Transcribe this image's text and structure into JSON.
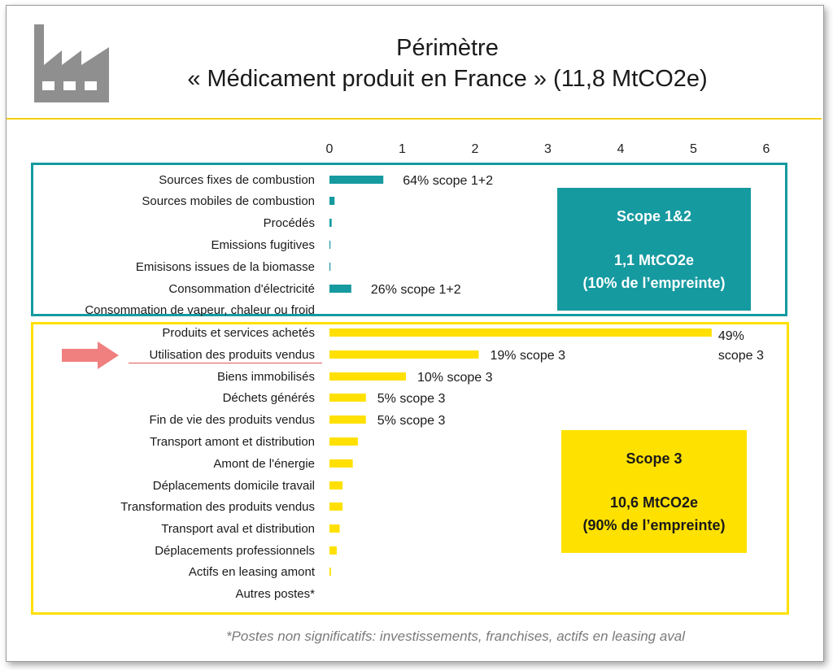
{
  "title": {
    "line1": "Périmètre",
    "line2": "« Médicament produit en France » (11,8 MtCO2e)"
  },
  "icons": {
    "factory": "factory-icon",
    "arrow": "arrow-right-icon"
  },
  "colors": {
    "teal": "#159aa0",
    "yellow": "#ffe000",
    "arrow": "#f08080",
    "rule": "#f2d000"
  },
  "panels": {
    "scope12": {
      "title": "Scope 1&2",
      "value": "1,1 MtCO2e",
      "share": "(10% de l’empreinte)"
    },
    "scope3": {
      "title": "Scope 3",
      "value": "10,6 MtCO2e",
      "share": "(90% de l’empreinte)"
    }
  },
  "highlight": "Utilisation des produits vendus",
  "footnote": "*Postes non significatifs: investissements, franchises, actifs en leasing aval",
  "chart_data": {
    "type": "bar",
    "orientation": "horizontal",
    "xlim": [
      0,
      6
    ],
    "xticks": [
      "0",
      "1",
      "2",
      "3",
      "4",
      "5",
      "6"
    ],
    "grid": false,
    "groups": [
      {
        "name": "Scope 1&2",
        "color": "#159aa0",
        "categories": [
          "Sources fixes de combustion",
          "Sources mobiles de combustion",
          "Procédés",
          "Emissions fugitives",
          "Emisisons issues de la biomasse",
          "Consommation d'électricité",
          "Consommation de vapeur, chaleur ou froid"
        ],
        "values": [
          0.74,
          0.07,
          0.03,
          0.01,
          0.01,
          0.3,
          0
        ],
        "labels": [
          "64% scope 1+2",
          "",
          "",
          "",
          "",
          "26% scope 1+2",
          ""
        ]
      },
      {
        "name": "Scope 3",
        "color": "#ffe000",
        "categories": [
          "Produits et services achetés",
          "Utilisation des produits vendus",
          "Biens immobilisés",
          "Déchets générés",
          "Fin de vie des produits vendus",
          "Transport amont et distribution",
          "Amont de l'énergie",
          "Déplacements domicile travail",
          "Transformation des produits vendus",
          "Transport aval et distribution",
          "Déplacements professionnels",
          "Actifs en leasing amont",
          "Autres postes*"
        ],
        "values": [
          5.25,
          2.05,
          1.05,
          0.5,
          0.5,
          0.39,
          0.32,
          0.18,
          0.18,
          0.14,
          0.1,
          0.02,
          0
        ],
        "labels": [
          "49%\nscope 3",
          "19% scope 3",
          "10% scope 3",
          "5% scope 3",
          "5% scope 3",
          "",
          "",
          "",
          "",
          "",
          "",
          "",
          ""
        ]
      }
    ]
  }
}
